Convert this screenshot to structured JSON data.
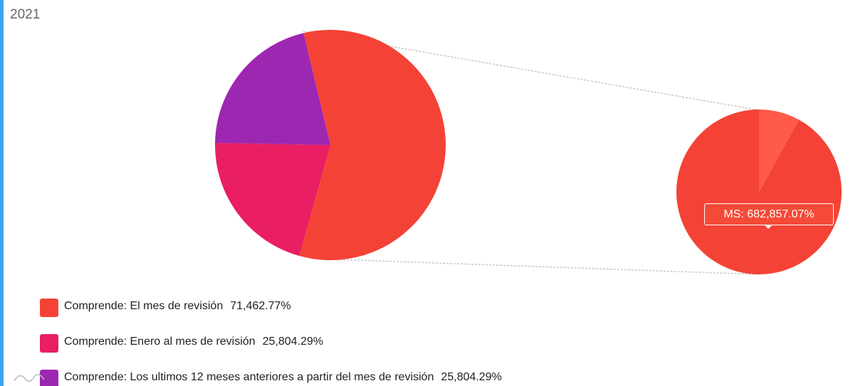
{
  "title": "2021",
  "chart_data": {
    "type": "pie",
    "title": "2021",
    "main_pie": {
      "slices": [
        {
          "label": "Comprende: El mes de revisión",
          "value": 71462.77,
          "display": "71,462.77%",
          "color": "#f44336"
        },
        {
          "label": "Comprende: Enero al mes de revisión",
          "value": 25804.29,
          "display": "25,804.29%",
          "color": "#e91e63"
        },
        {
          "label": "Comprende: Los ultimos 12 meses anteriores a partir del mes de revisión",
          "value": 25804.29,
          "display": "25,804.29%",
          "color": "#9c27b0"
        }
      ]
    },
    "detail_pie": {
      "highlighted_label": "MS",
      "highlighted_value": 682857.07,
      "slices": [
        {
          "value": 0.92,
          "color": "#f44336"
        },
        {
          "value": 0.08,
          "color": "#ff5a4a"
        }
      ]
    },
    "tooltip": "MS: 682,857.07%",
    "legend_position": "bottom-left"
  },
  "legend": [
    {
      "label": "Comprende: El mes de revisión",
      "value": "71,462.77%",
      "color": "#f44336"
    },
    {
      "label": "Comprende: Enero al mes de revisión",
      "value": "25,804.29%",
      "color": "#e91e63"
    },
    {
      "label": "Comprende: Los ultimos 12 meses anteriores a partir del mes de revisión",
      "value": "25,804.29%",
      "color": "#9c27b0"
    }
  ],
  "icons": {
    "footer": "wave-logo-icon"
  }
}
